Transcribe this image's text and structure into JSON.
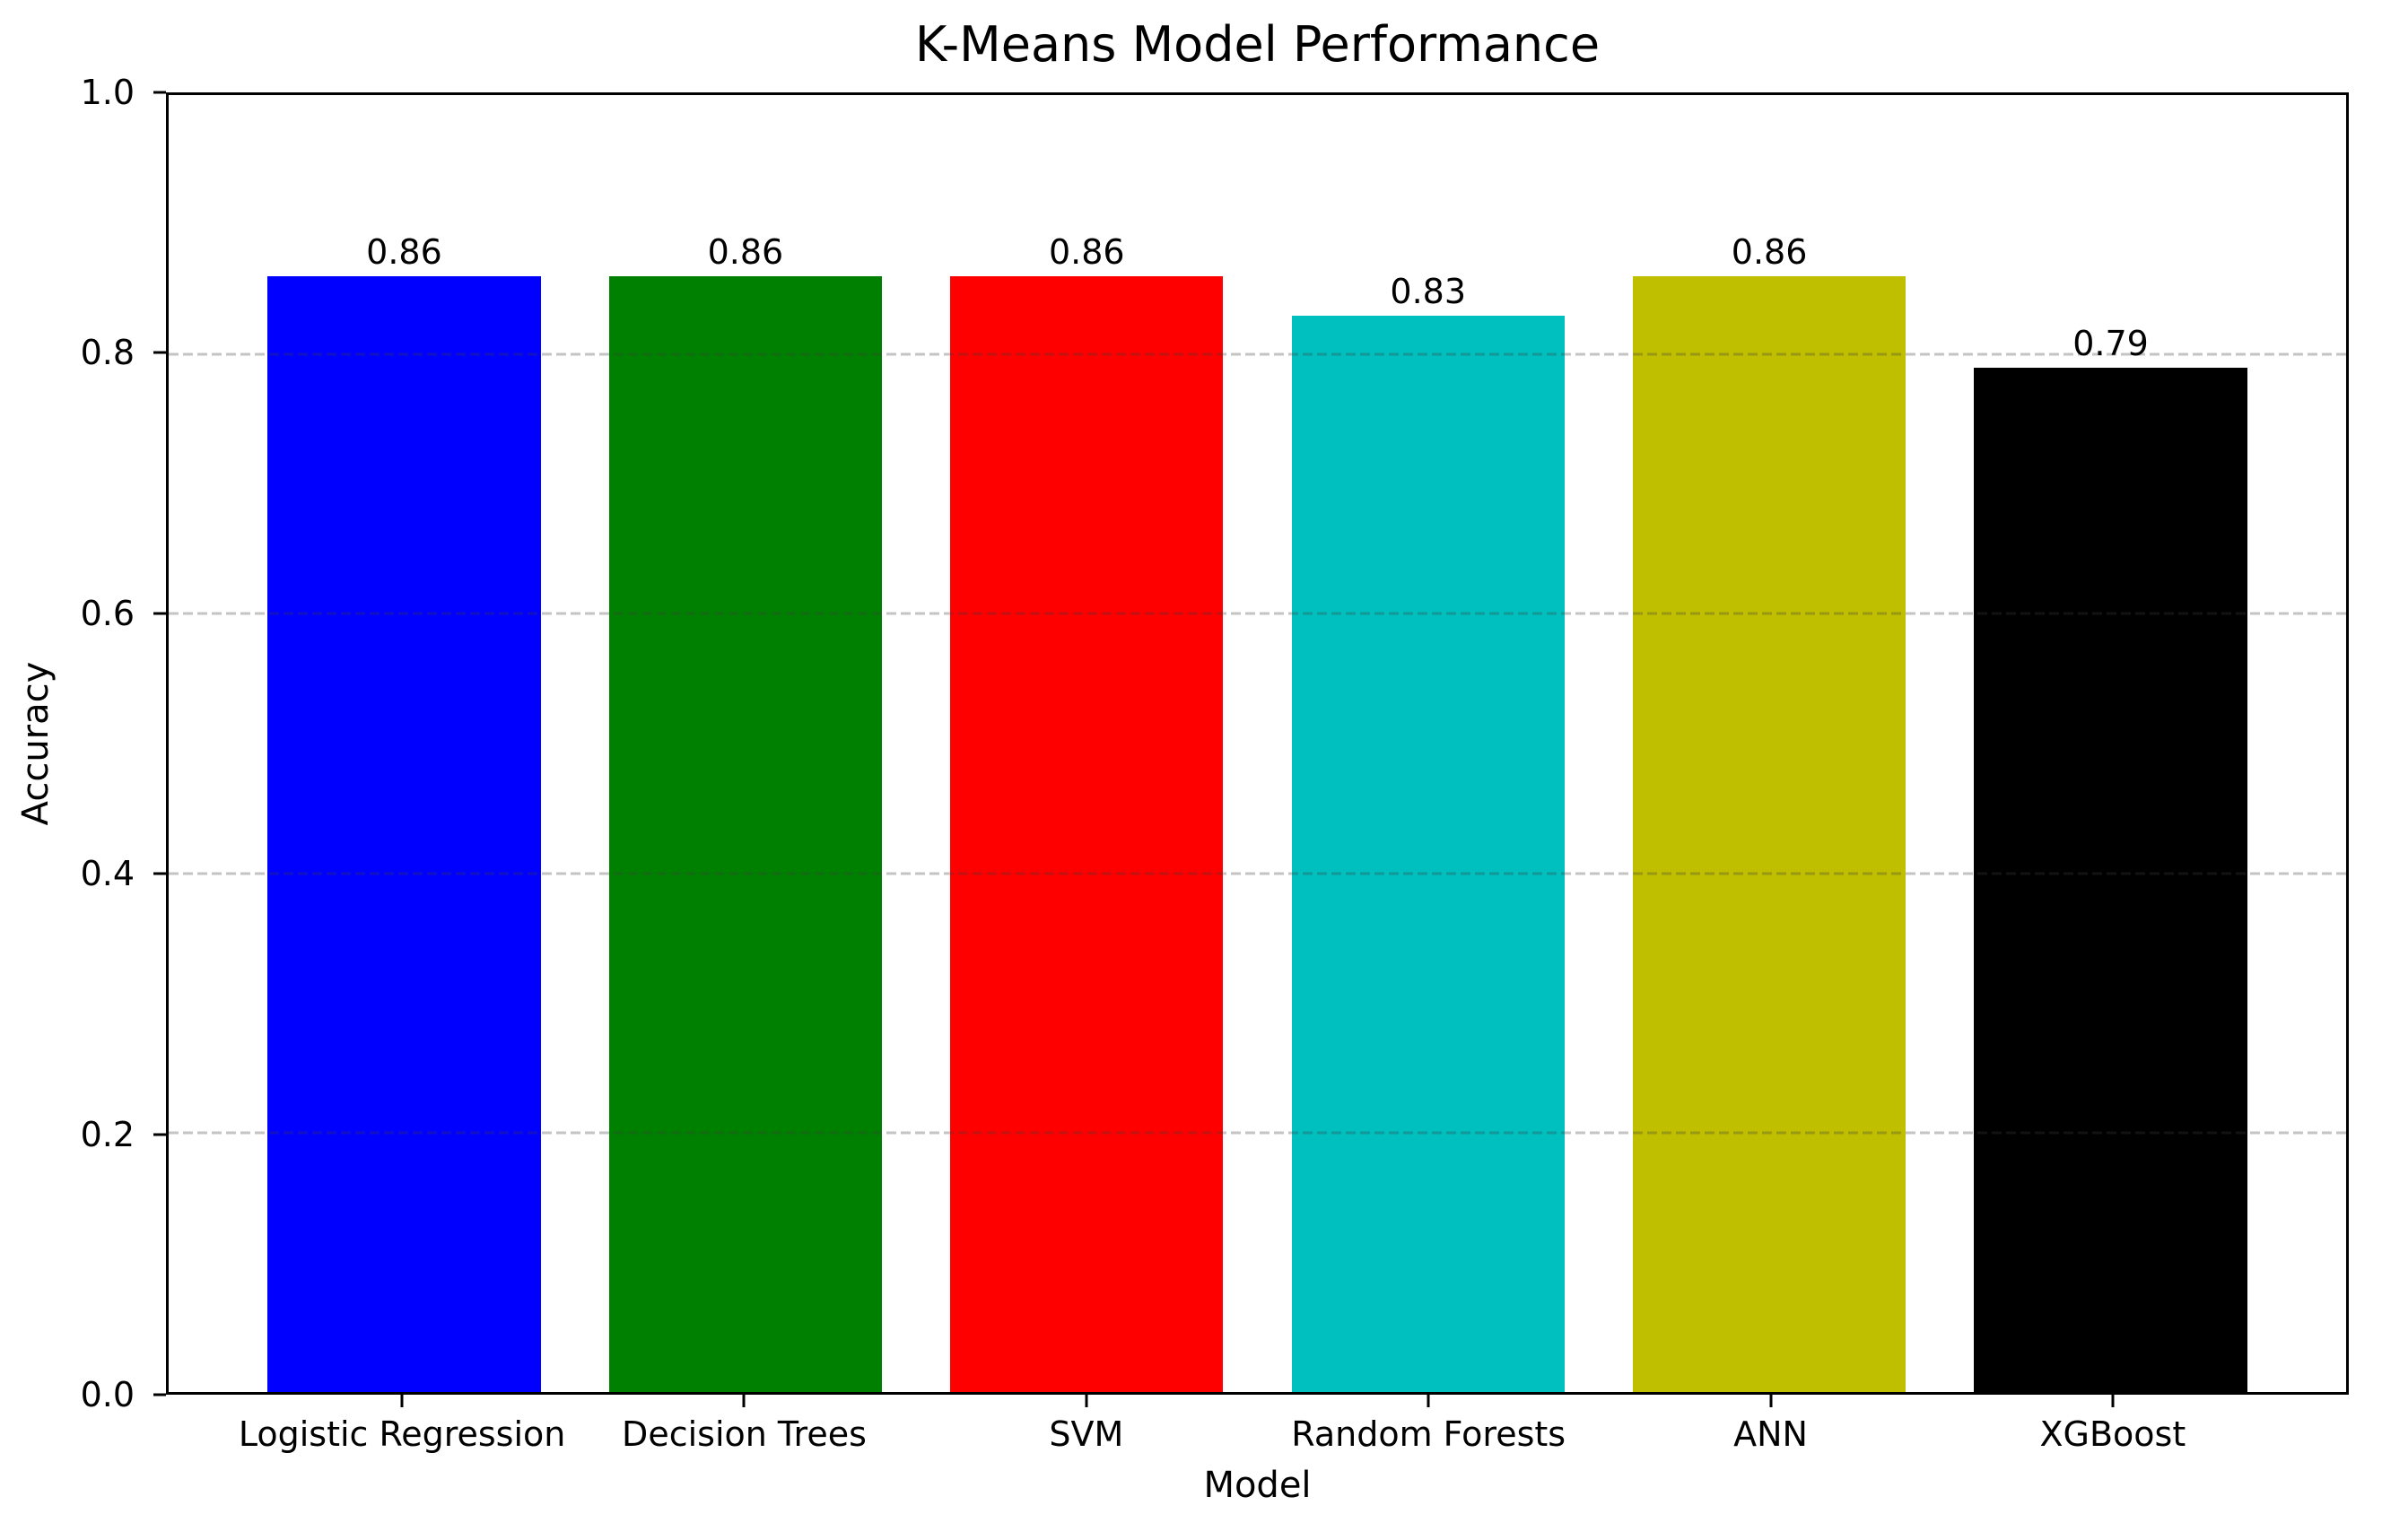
{
  "chart_data": {
    "type": "bar",
    "title": "K-Means Model Performance",
    "xlabel": "Model",
    "ylabel": "Accuracy",
    "categories": [
      "Logistic Regression",
      "Decision Trees",
      "SVM",
      "Random Forests",
      "ANN",
      "XGBoost"
    ],
    "values": [
      0.86,
      0.86,
      0.86,
      0.83,
      0.86,
      0.79
    ],
    "bar_labels": [
      "0.86",
      "0.86",
      "0.86",
      "0.83",
      "0.86",
      "0.79"
    ],
    "bar_colors": [
      "#0000ff",
      "#008000",
      "#ff0000",
      "#00bfbf",
      "#bfbf00",
      "#000000"
    ],
    "ylim": [
      0.0,
      1.0
    ],
    "xlim": [
      -0.69,
      5.69
    ],
    "bar_width_fraction": 0.8,
    "yticks": [
      0.0,
      0.2,
      0.4,
      0.6,
      0.8,
      1.0
    ],
    "ytick_labels": [
      "0.0",
      "0.2",
      "0.4",
      "0.6",
      "0.8",
      "1.0"
    ],
    "gridlines_y": [
      0.2,
      0.4,
      0.6,
      0.8
    ],
    "grid_axis": "y",
    "grid_linestyle": "dashed",
    "grid_color": "rgba(60,60,60,0.3)",
    "legend": "none",
    "spine_color": "#000000",
    "background_color": "#ffffff",
    "text_color": "#000000"
  }
}
